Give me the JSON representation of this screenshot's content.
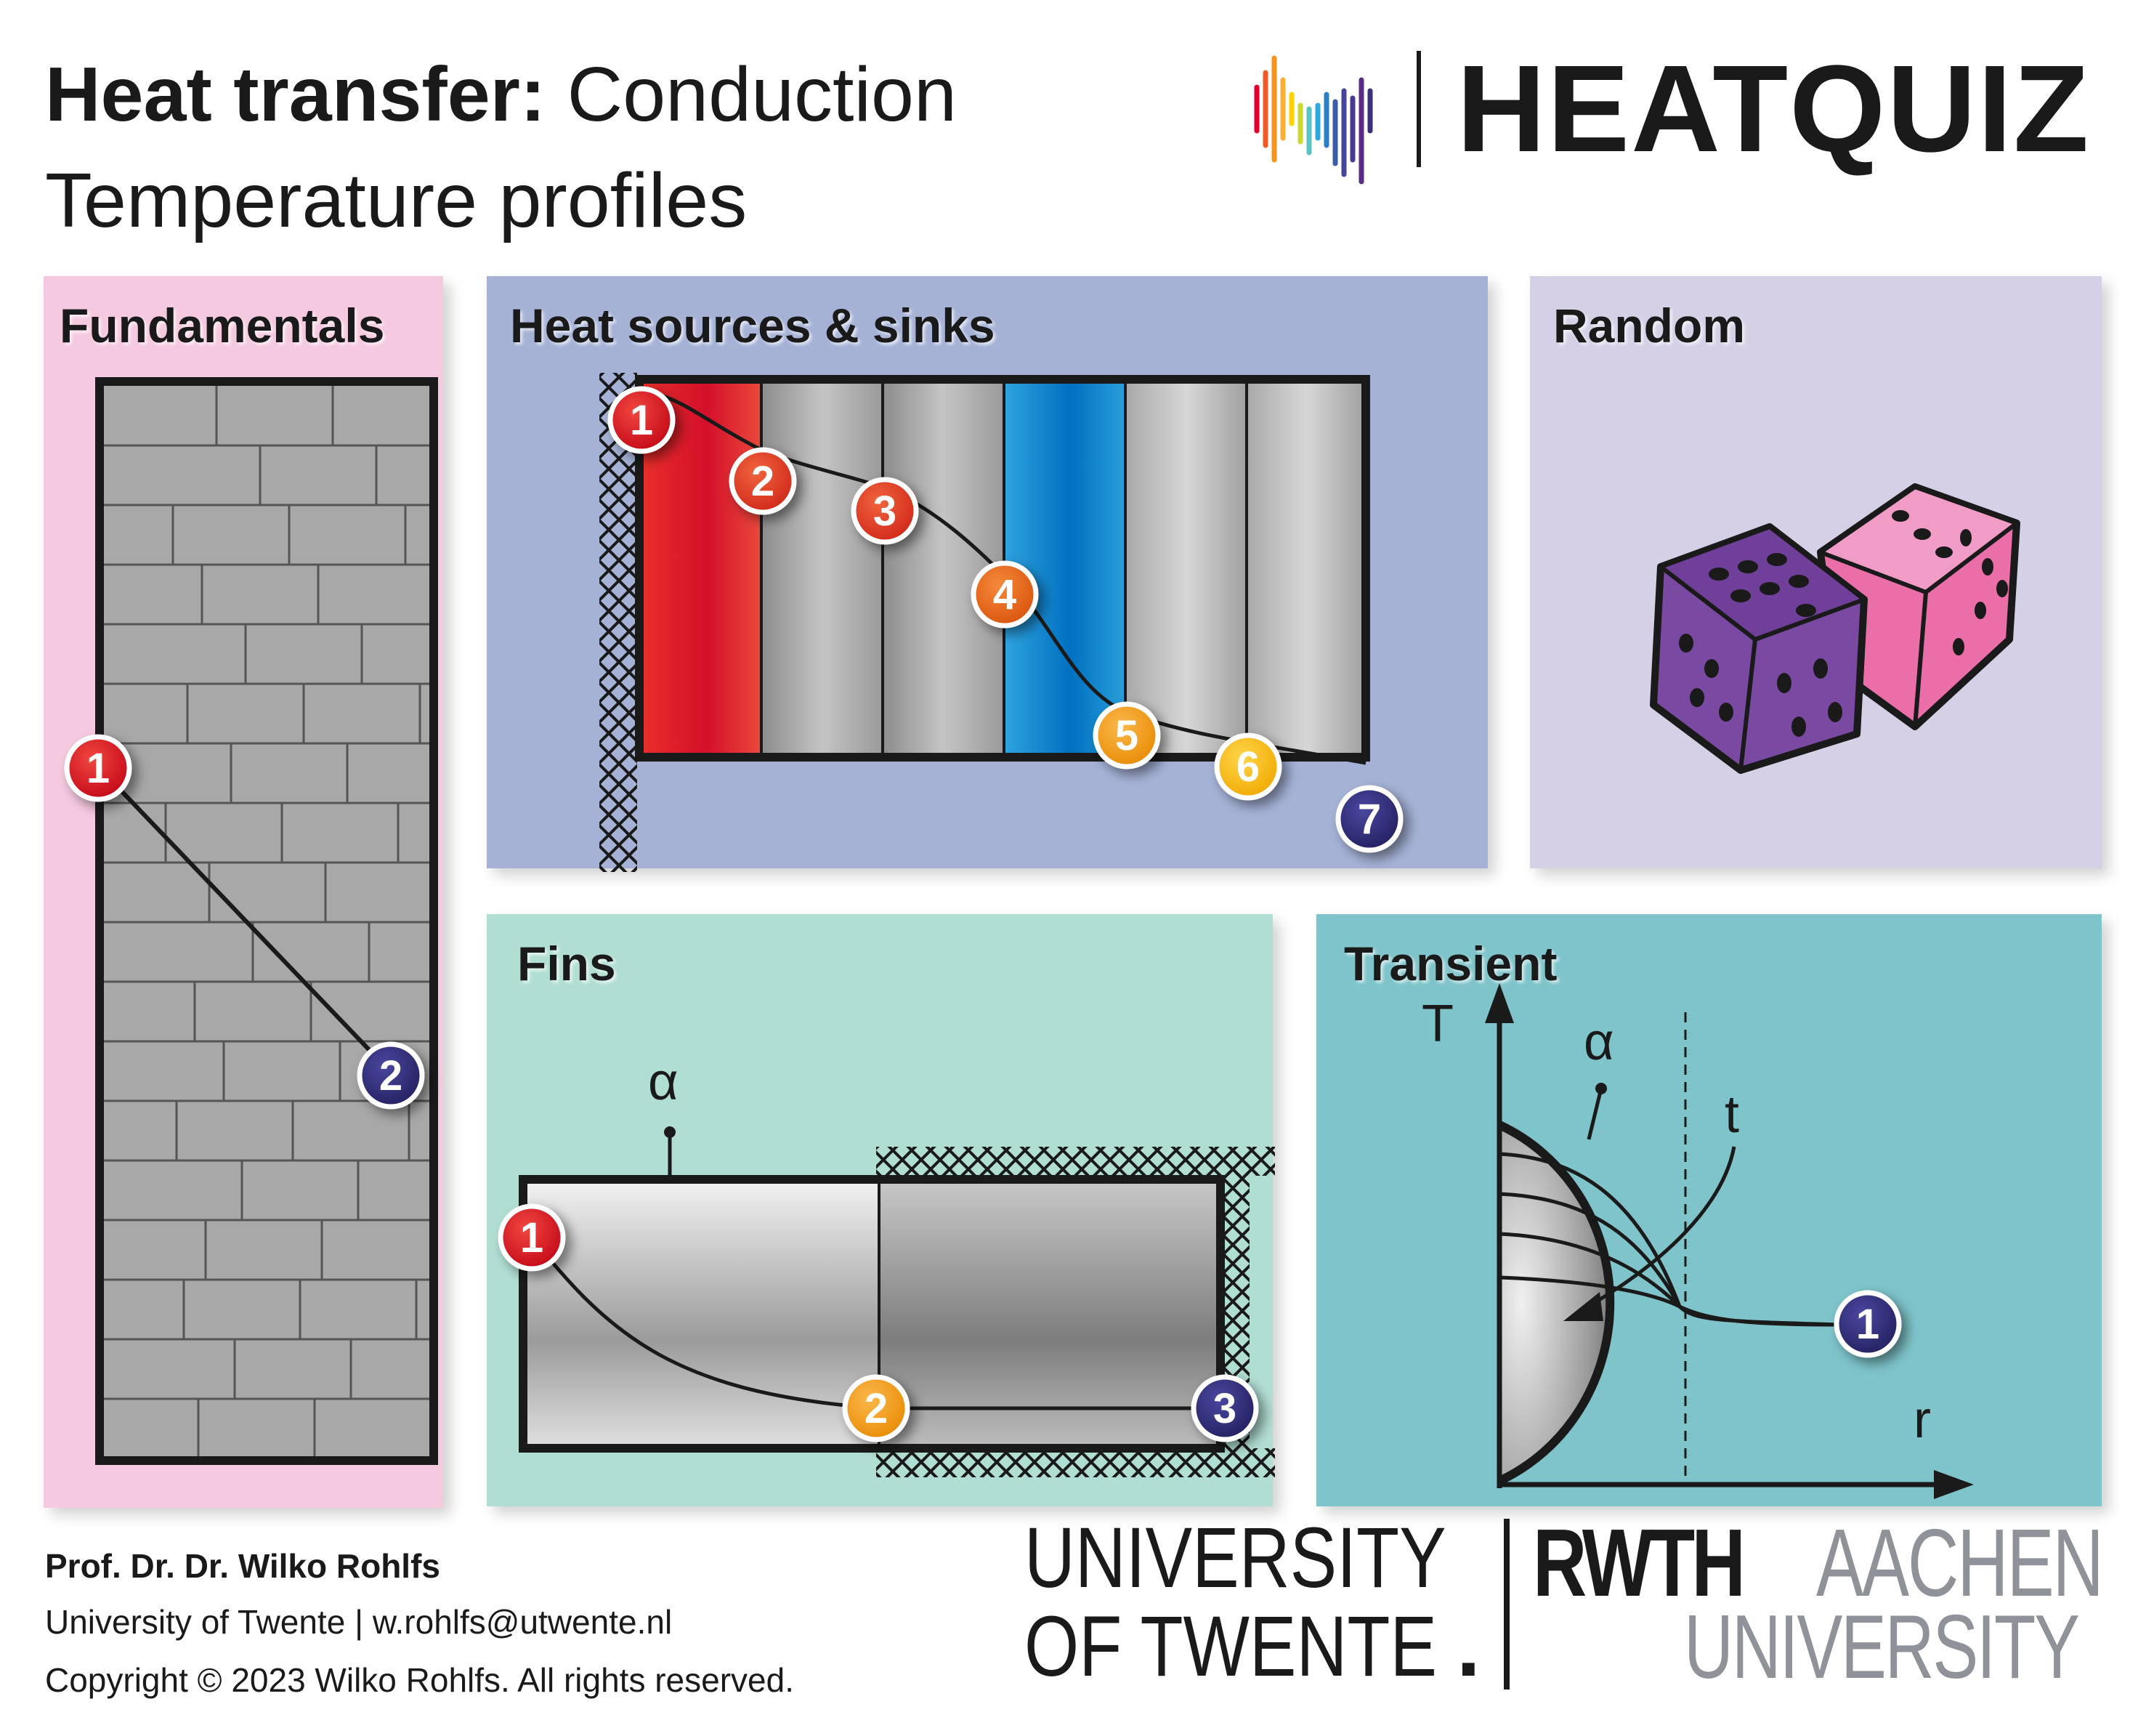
{
  "header": {
    "title_bold": "Heat transfer:",
    "title_rest": " Conduction",
    "subtitle": "Temperature profiles",
    "brand": "HEATQUIZ"
  },
  "panels": {
    "fundamentals": "Fundamentals",
    "sources": "Heat sources & sinks",
    "random": "Random",
    "fins": "Fins",
    "transient": "Transient"
  },
  "markers": {
    "fundamentals": [
      "1",
      "2"
    ],
    "sources": [
      "1",
      "2",
      "3",
      "4",
      "5",
      "6",
      "7"
    ],
    "fins": [
      "1",
      "2",
      "3"
    ],
    "transient": [
      "1"
    ]
  },
  "labels": {
    "alpha": "α",
    "T": "T",
    "t": "t",
    "r": "r"
  },
  "footer": {
    "author": "Prof. Dr. Dr. Wilko Rohlfs",
    "affiliation": "University of Twente  |  w.rohlfs@utwente.nl",
    "copyright": "Copyright © 2023 Wilko Rohlfs. All rights reserved."
  },
  "logos": {
    "ut_line1": "UNIVERSITY",
    "ut_line2": "OF TWENTE",
    "ut_dot": ".",
    "rwth": "RWTH",
    "aachen": "AACHEN",
    "university": "UNIVERSITY"
  },
  "colors": {
    "fundamentals_bg": "#f5c9df",
    "sources_bg": "#a5b2d6",
    "random_bg": "#d5d0e6",
    "fins_bg": "#b1ded3",
    "transient_bg": "#7ec4ca",
    "marker_red": "#d7141f",
    "marker_orange_red": "#e43d1c",
    "marker_orange": "#e96514",
    "marker_amber": "#f29a12",
    "marker_yellow": "#f5b800",
    "marker_navy": "#2c2a7a"
  }
}
